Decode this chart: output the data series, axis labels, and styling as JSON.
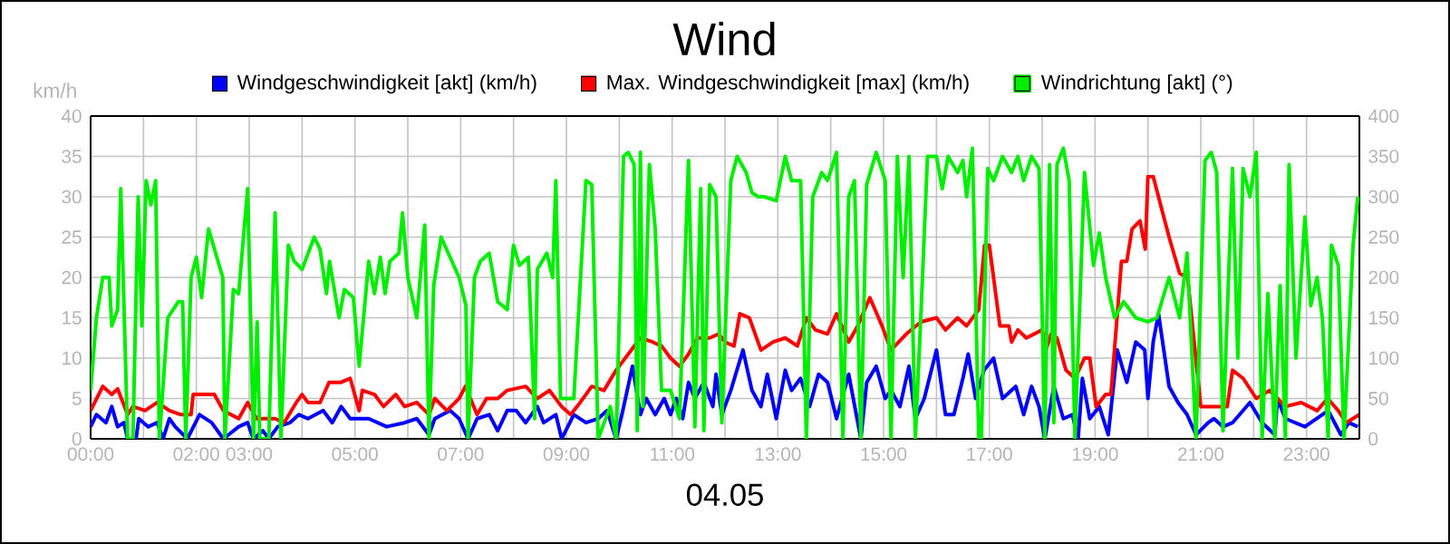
{
  "chart_data": {
    "type": "line",
    "title": "Wind",
    "xlabel": "04.05",
    "ylabel": "km/h",
    "xlim": [
      0,
      24
    ],
    "ylim": [
      0,
      40
    ],
    "y2lim": [
      0,
      400
    ],
    "xticks": [
      {
        "value": 0,
        "label": "00:00"
      },
      {
        "value": 1,
        "label": null
      },
      {
        "value": 2,
        "label": "02:00"
      },
      {
        "value": 3,
        "label": "03:00"
      },
      {
        "value": 4,
        "label": null
      },
      {
        "value": 5,
        "label": "05:00"
      },
      {
        "value": 6,
        "label": null
      },
      {
        "value": 7,
        "label": "07:00"
      },
      {
        "value": 8,
        "label": null
      },
      {
        "value": 9,
        "label": "09:00"
      },
      {
        "value": 10,
        "label": null
      },
      {
        "value": 11,
        "label": "11:00"
      },
      {
        "value": 12,
        "label": null
      },
      {
        "value": 13,
        "label": "13:00"
      },
      {
        "value": 14,
        "label": null
      },
      {
        "value": 15,
        "label": "15:00"
      },
      {
        "value": 16,
        "label": null
      },
      {
        "value": 17,
        "label": "17:00"
      },
      {
        "value": 18,
        "label": null
      },
      {
        "value": 19,
        "label": "19:00"
      },
      {
        "value": 20,
        "label": null
      },
      {
        "value": 21,
        "label": "21:00"
      },
      {
        "value": 22,
        "label": null
      },
      {
        "value": 23,
        "label": "23:00"
      }
    ],
    "yticks": [
      0,
      5,
      10,
      15,
      20,
      25,
      30,
      35,
      40
    ],
    "y2ticks": [
      0,
      50,
      100,
      150,
      200,
      250,
      300,
      350,
      400
    ],
    "grid": true,
    "legend": "top",
    "series": [
      {
        "name": "Windgeschwindigkeit [akt] (km/h)",
        "color": "#0000ff",
        "x": [
          0,
          0.11,
          0.29,
          0.4,
          0.51,
          0.63,
          0.7,
          0.86,
          0.91,
          1.09,
          1.26,
          1.37,
          1.49,
          1.6,
          1.83,
          2.06,
          2.29,
          2.51,
          2.8,
          2.97,
          3.08,
          3.26,
          3.37,
          3.54,
          3.77,
          3.94,
          4.11,
          4.4,
          4.57,
          4.74,
          4.91,
          5.26,
          5.6,
          5.94,
          6.17,
          6.4,
          6.51,
          6.8,
          6.97,
          7.14,
          7.31,
          7.54,
          7.7,
          7.88,
          8.05,
          8.23,
          8.45,
          8.57,
          8.8,
          8.91,
          9.14,
          9.37,
          9.6,
          9.77,
          9.94,
          10.05,
          10.25,
          10.4,
          10.51,
          10.68,
          10.85,
          10.97,
          11.08,
          11.2,
          11.31,
          11.43,
          11.6,
          11.77,
          11.83,
          11.94,
          12.11,
          12.34,
          12.51,
          12.68,
          12.8,
          12.97,
          13.14,
          13.26,
          13.43,
          13.6,
          13.77,
          13.94,
          14.11,
          14.34,
          14.57,
          14.68,
          14.86,
          15.03,
          15.14,
          15.31,
          15.48,
          15.6,
          15.77,
          16.0,
          16.17,
          16.33,
          16.5,
          16.6,
          16.74,
          16.9,
          17.08,
          17.25,
          17.5,
          17.65,
          17.8,
          17.94,
          18.05,
          18.22,
          18.4,
          18.57,
          18.68,
          18.76,
          18.9,
          19.08,
          19.25,
          19.42,
          19.6,
          19.77,
          19.94,
          20.0,
          20.1,
          20.2,
          20.4,
          20.57,
          20.74,
          20.91,
          21.14,
          21.25,
          21.42,
          21.6,
          21.93,
          22.16,
          22.4,
          22.45,
          22.6,
          22.97,
          23.41,
          23.65,
          23.8,
          23.97
        ],
        "values": [
          1.5,
          3,
          2,
          4,
          1.5,
          2,
          0,
          0,
          2.5,
          1.5,
          2,
          0,
          2.5,
          1.5,
          0,
          3,
          2,
          0,
          1.5,
          2,
          0,
          1,
          0,
          1.5,
          2,
          3,
          2.5,
          3.5,
          2,
          4,
          2.5,
          2.5,
          1.5,
          2,
          2.5,
          0.5,
          2.5,
          3.5,
          2.5,
          0,
          2.5,
          3,
          1,
          3.5,
          3.5,
          2,
          4,
          2,
          3,
          0,
          3,
          2,
          2.5,
          3.5,
          0,
          3,
          9,
          3,
          5,
          3,
          5,
          3,
          5,
          2.5,
          7,
          5,
          7,
          4,
          8,
          3,
          6,
          11,
          6,
          4,
          8,
          2.5,
          8.5,
          6,
          7.5,
          4,
          8,
          7,
          2.5,
          8,
          0,
          7,
          9,
          5,
          6,
          4,
          9,
          2.5,
          5,
          11,
          3,
          3,
          7.5,
          10.5,
          5,
          8.5,
          10,
          5,
          6.5,
          3,
          6.5,
          4,
          0,
          6.5,
          2.5,
          3,
          0,
          7.5,
          2.5,
          4,
          0.5,
          11,
          7,
          12,
          11,
          5,
          12,
          15.5,
          6.5,
          4.5,
          3,
          0.5,
          2,
          2.5,
          1.5,
          2,
          4.5,
          2,
          0.5,
          5,
          2.5,
          1.5,
          3.5,
          0.5,
          2,
          1.5
        ]
      },
      {
        "name": "Max. Windgeschwindigkeit [max] (km/h)",
        "color": "#ff0000",
        "x": [
          0,
          0.23,
          0.4,
          0.51,
          0.7,
          0.8,
          1.03,
          1.26,
          1.49,
          1.71,
          1.9,
          1.94,
          2.34,
          2.51,
          2.8,
          2.97,
          3.14,
          3.49,
          3.66,
          3.89,
          4.0,
          4.11,
          4.34,
          4.51,
          4.74,
          4.91,
          5.08,
          5.14,
          5.37,
          5.54,
          5.77,
          5.94,
          6.17,
          6.4,
          6.51,
          6.74,
          6.97,
          7.09,
          7.31,
          7.49,
          7.7,
          7.88,
          8.23,
          8.45,
          8.68,
          8.91,
          9.08,
          9.26,
          9.48,
          9.71,
          9.94,
          10.17,
          10.4,
          10.63,
          10.8,
          10.97,
          11.14,
          11.31,
          11.48,
          11.71,
          11.88,
          12.0,
          12.17,
          12.28,
          12.46,
          12.68,
          12.91,
          13.14,
          13.37,
          13.54,
          13.71,
          13.94,
          14.11,
          14.34,
          14.51,
          14.74,
          14.97,
          15.14,
          15.43,
          15.71,
          16.0,
          16.17,
          16.4,
          16.57,
          16.8,
          16.91,
          17.0,
          17.2,
          17.37,
          17.42,
          17.54,
          17.7,
          18.0,
          18.07,
          18.17,
          18.28,
          18.45,
          18.62,
          18.8,
          18.9,
          19.02,
          19.2,
          19.3,
          19.5,
          19.6,
          19.7,
          19.85,
          19.95,
          20.0,
          20.1,
          20.4,
          20.6,
          20.75,
          21.0,
          21.5,
          21.6,
          21.8,
          22.05,
          22.3,
          22.6,
          22.9,
          23.2,
          23.4,
          23.6,
          23.75,
          24.0
        ],
        "values": [
          3.5,
          6.5,
          5.5,
          6.2,
          3,
          4,
          3.5,
          4.5,
          3.5,
          3,
          3,
          5.5,
          5.5,
          3.5,
          2.5,
          4.5,
          2.5,
          2.5,
          2,
          4.5,
          5.5,
          4.5,
          4.5,
          7,
          7,
          7.5,
          3.5,
          6,
          5.5,
          4,
          5.5,
          4,
          4.5,
          3,
          5,
          3.5,
          5,
          6.5,
          3,
          5,
          5,
          6,
          6.5,
          5,
          6,
          4,
          3,
          4.5,
          6.5,
          6,
          8.5,
          10.5,
          12.5,
          12,
          11.5,
          10,
          9,
          10.5,
          12.5,
          12.5,
          13,
          12,
          11.5,
          15.5,
          15,
          11,
          12,
          12.5,
          11.5,
          15,
          13.5,
          13,
          15.5,
          12,
          14,
          17.5,
          14,
          11,
          13,
          14.5,
          15,
          13.5,
          15,
          14,
          16,
          24,
          24,
          14,
          14,
          12,
          13.5,
          12.5,
          13.5,
          11,
          13,
          12.5,
          8.5,
          7.5,
          10,
          10,
          4,
          5.5,
          5.5,
          22,
          22,
          26,
          27,
          23.5,
          32.5,
          32.5,
          25,
          20.5,
          20,
          4,
          4,
          8.5,
          7.5,
          5,
          6,
          4,
          4.5,
          3.5,
          5,
          3.5,
          2,
          3
        ]
      },
      {
        "name": "Windrichtung [akt] (°)",
        "color": "#00ee00",
        "axis": "y2",
        "x": [
          0,
          0.11,
          0.23,
          0.35,
          0.4,
          0.51,
          0.57,
          0.7,
          0.8,
          0.9,
          0.97,
          1.05,
          1.14,
          1.23,
          1.3,
          1.46,
          1.66,
          1.74,
          1.8,
          1.9,
          2.0,
          2.1,
          2.23,
          2.5,
          2.54,
          2.7,
          2.8,
          2.97,
          3.08,
          3.15,
          3.2,
          3.37,
          3.49,
          3.6,
          3.74,
          3.85,
          4.0,
          4.23,
          4.34,
          4.46,
          4.52,
          4.7,
          4.8,
          4.97,
          5.08,
          5.26,
          5.37,
          5.48,
          5.57,
          5.66,
          5.83,
          5.9,
          6.0,
          6.17,
          6.32,
          6.4,
          6.49,
          6.63,
          6.8,
          6.97,
          7.1,
          7.14,
          7.26,
          7.37,
          7.54,
          7.7,
          7.88,
          8.0,
          8.11,
          8.28,
          8.4,
          8.45,
          8.63,
          8.74,
          8.8,
          8.89,
          9.14,
          9.37,
          9.48,
          9.6,
          9.83,
          9.94,
          10.08,
          10.17,
          10.28,
          10.34,
          10.4,
          10.45,
          10.57,
          10.68,
          10.8,
          10.97,
          11.14,
          11.31,
          11.43,
          11.54,
          11.6,
          11.71,
          11.83,
          11.94,
          12.11,
          12.23,
          12.4,
          12.51,
          12.63,
          12.74,
          12.97,
          13.14,
          13.26,
          13.43,
          13.54,
          13.66,
          13.83,
          13.94,
          14.11,
          14.23,
          14.34,
          14.45,
          14.57,
          14.68,
          14.86,
          15.03,
          15.14,
          15.26,
          15.37,
          15.48,
          15.6,
          15.71,
          15.83,
          16.0,
          16.11,
          16.22,
          16.4,
          16.5,
          16.57,
          16.68,
          16.8,
          16.85,
          16.97,
          17.08,
          17.25,
          17.42,
          17.54,
          17.65,
          17.8,
          17.94,
          18.05,
          18.14,
          18.22,
          18.28,
          18.4,
          18.51,
          18.62,
          18.8,
          18.97,
          19.08,
          19.2,
          19.37,
          19.54,
          19.77,
          20.0,
          20.17,
          20.4,
          20.6,
          20.74,
          20.91,
          21.08,
          21.2,
          21.3,
          21.42,
          21.6,
          21.7,
          21.8,
          21.93,
          22.05,
          22.16,
          22.27,
          22.4,
          22.5,
          22.6,
          22.67,
          22.8,
          22.97,
          23.08,
          23.2,
          23.3,
          23.41,
          23.47,
          23.6,
          23.71,
          23.88,
          23.97
        ],
        "values": [
          60,
          150,
          200,
          200,
          140,
          160,
          310,
          0,
          0,
          300,
          140,
          320,
          290,
          320,
          0,
          150,
          170,
          170,
          0,
          200,
          225,
          175,
          260,
          200,
          0,
          185,
          180,
          310,
          0,
          145,
          0,
          0,
          280,
          0,
          240,
          220,
          210,
          250,
          235,
          180,
          220,
          150,
          185,
          175,
          90,
          220,
          180,
          225,
          180,
          220,
          230,
          280,
          200,
          150,
          265,
          0,
          190,
          250,
          225,
          200,
          165,
          0,
          200,
          220,
          230,
          170,
          160,
          240,
          215,
          225,
          25,
          210,
          230,
          200,
          320,
          50,
          50,
          320,
          315,
          0,
          40,
          0,
          350,
          355,
          340,
          10,
          355,
          40,
          340,
          260,
          60,
          60,
          25,
          345,
          15,
          310,
          10,
          315,
          300,
          20,
          320,
          350,
          330,
          305,
          300,
          300,
          295,
          350,
          320,
          320,
          0,
          300,
          330,
          320,
          355,
          0,
          300,
          320,
          0,
          315,
          355,
          320,
          0,
          350,
          200,
          350,
          0,
          160,
          350,
          350,
          310,
          350,
          330,
          345,
          300,
          360,
          0,
          0,
          335,
          320,
          350,
          330,
          350,
          320,
          350,
          335,
          0,
          340,
          20,
          340,
          360,
          320,
          0,
          330,
          215,
          255,
          200,
          150,
          170,
          150,
          145,
          150,
          200,
          150,
          230,
          0,
          345,
          355,
          330,
          10,
          335,
          100,
          335,
          300,
          355,
          0,
          180,
          0,
          190,
          0,
          340,
          100,
          275,
          165,
          200,
          150,
          0,
          240,
          215,
          0,
          240,
          300
        ]
      }
    ]
  }
}
